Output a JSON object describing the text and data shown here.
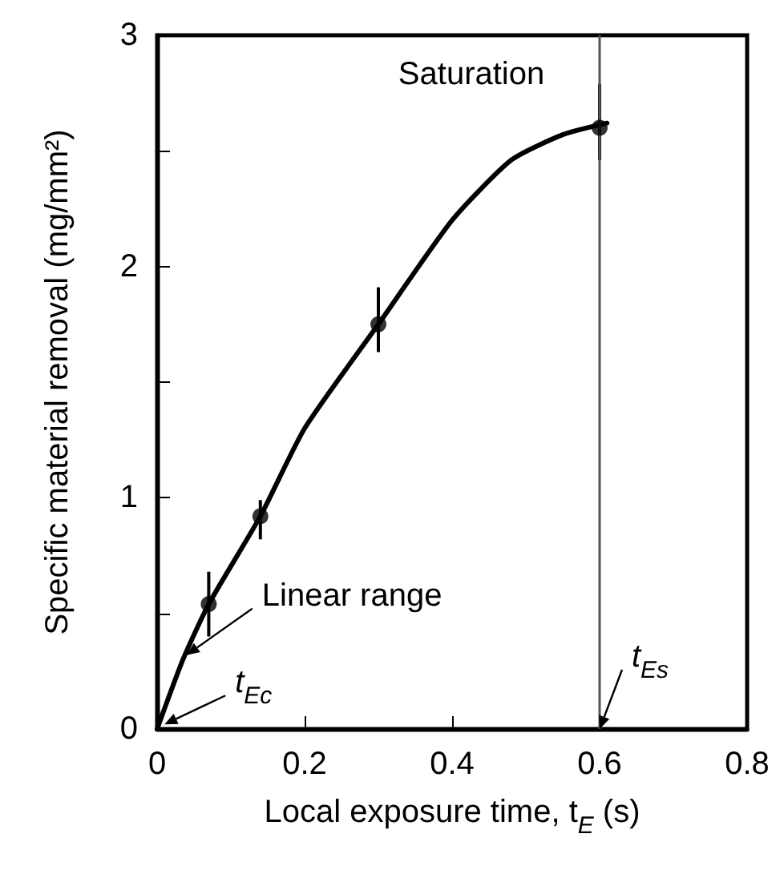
{
  "chart_data": {
    "type": "scatter",
    "xlabel": "Local exposure time, t$_{E}$ (s)",
    "ylabel": "Specific material removal (mg/mm²)",
    "xlim": [
      0,
      0.8
    ],
    "xticks": [
      0,
      0.2,
      0.4,
      0.6,
      0.8
    ],
    "ylim": [
      0,
      3
    ],
    "yticks": [
      0,
      {
        "value": 0.5,
        "label": null
      },
      1,
      {
        "value": 1.5,
        "label": null
      },
      2,
      {
        "value": 2.5,
        "label": null
      },
      3
    ],
    "marker": "circle",
    "line_style": "solid",
    "series": [
      {
        "type": "line",
        "color": "#000000",
        "marker": "none",
        "x": [
          0,
          0.035,
          0.07,
          0.14,
          0.2,
          0.3,
          0.4,
          0.48,
          0.55,
          0.61
        ],
        "values": [
          0,
          0.3,
          0.54,
          0.92,
          1.3,
          1.75,
          2.2,
          2.46,
          2.57,
          2.62
        ]
      },
      {
        "color": "#000000",
        "x": [
          0.07,
          0.14,
          0.3,
          0.6
        ],
        "values": [
          0.54,
          0.92,
          1.75,
          2.6
        ],
        "errors": [
          [
            0.4,
            0.68
          ],
          [
            0.82,
            0.99
          ],
          [
            1.63,
            1.91
          ],
          [
            2.46,
            2.79
          ]
        ]
      }
    ],
    "ref_lines": [
      {
        "axis": "x",
        "value": 0.6,
        "color": "#555555"
      }
    ],
    "annotations": [
      {
        "text": "Saturation",
        "x": 0.6,
        "y": 2.6
      },
      {
        "text": "Linear range",
        "x": 0.04,
        "y": 0.32
      },
      {
        "text": "t$_{Ec}$",
        "x": 0.01,
        "y": 0.02
      },
      {
        "text": "t$_{Es}$",
        "x": 0.6,
        "y": 0
      }
    ]
  }
}
